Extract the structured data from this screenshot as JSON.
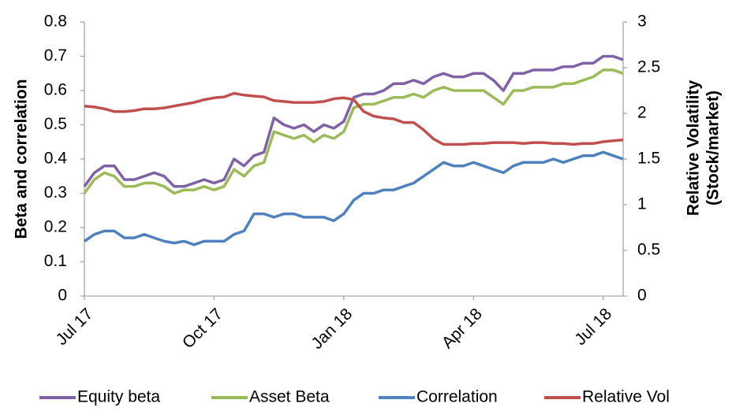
{
  "chart_data": {
    "type": "line",
    "categories": [
      "Jul 17",
      null,
      null,
      null,
      null,
      null,
      null,
      null,
      null,
      null,
      null,
      null,
      null,
      "Oct 17",
      null,
      null,
      null,
      null,
      null,
      null,
      null,
      null,
      null,
      null,
      null,
      null,
      "Jan 18",
      null,
      null,
      null,
      null,
      null,
      null,
      null,
      null,
      null,
      null,
      null,
      null,
      "Apr 18",
      null,
      null,
      null,
      null,
      null,
      null,
      null,
      null,
      null,
      null,
      null,
      null,
      "Jul 18",
      null,
      null
    ],
    "y_label": "Beta and correlation",
    "y2_label": [
      "Relative Volatility",
      "(Stock/market)"
    ],
    "ylim": [
      0,
      0.8
    ],
    "yticks": [
      0,
      0.1,
      0.2,
      0.3,
      0.4,
      0.5,
      0.6,
      0.7,
      0.8
    ],
    "y2lim": [
      0,
      3
    ],
    "y2ticks": [
      0,
      0.5,
      1,
      1.5,
      2,
      2.5,
      3
    ],
    "grid": false,
    "legend": "bottom",
    "series": [
      {
        "name": "Equity beta",
        "color": "#7f62a6",
        "values": [
          0.32,
          0.36,
          0.38,
          0.38,
          0.34,
          0.34,
          0.35,
          0.36,
          0.35,
          0.32,
          0.32,
          0.33,
          0.34,
          0.33,
          0.34,
          0.4,
          0.38,
          0.41,
          0.42,
          0.52,
          0.5,
          0.49,
          0.5,
          0.48,
          0.5,
          0.49,
          0.51,
          0.58,
          0.59,
          0.59,
          0.6,
          0.62,
          0.62,
          0.63,
          0.62,
          0.64,
          0.65,
          0.64,
          0.64,
          0.65,
          0.65,
          0.63,
          0.6,
          0.65,
          0.65,
          0.66,
          0.66,
          0.66,
          0.67,
          0.67,
          0.68,
          0.68,
          0.7,
          0.7,
          0.69
        ]
      },
      {
        "name": "Asset Beta",
        "color": "#9bbb59",
        "values": [
          0.3,
          0.34,
          0.36,
          0.35,
          0.32,
          0.32,
          0.33,
          0.33,
          0.32,
          0.3,
          0.31,
          0.31,
          0.32,
          0.31,
          0.32,
          0.37,
          0.35,
          0.38,
          0.39,
          0.48,
          0.47,
          0.46,
          0.47,
          0.45,
          0.47,
          0.46,
          0.48,
          0.55,
          0.56,
          0.56,
          0.57,
          0.58,
          0.58,
          0.59,
          0.58,
          0.6,
          0.61,
          0.6,
          0.6,
          0.6,
          0.6,
          0.58,
          0.56,
          0.6,
          0.6,
          0.61,
          0.61,
          0.61,
          0.62,
          0.62,
          0.63,
          0.64,
          0.66,
          0.66,
          0.65
        ]
      },
      {
        "name": "Correlation",
        "color": "#4f81bd",
        "values": [
          0.16,
          0.18,
          0.19,
          0.19,
          0.17,
          0.17,
          0.18,
          0.17,
          0.16,
          0.155,
          0.16,
          0.15,
          0.16,
          0.16,
          0.16,
          0.18,
          0.19,
          0.24,
          0.24,
          0.23,
          0.24,
          0.24,
          0.23,
          0.23,
          0.23,
          0.22,
          0.24,
          0.28,
          0.3,
          0.3,
          0.31,
          0.31,
          0.32,
          0.33,
          0.35,
          0.37,
          0.39,
          0.38,
          0.38,
          0.39,
          0.38,
          0.37,
          0.36,
          0.38,
          0.39,
          0.39,
          0.39,
          0.4,
          0.39,
          0.4,
          0.41,
          0.41,
          0.42,
          0.41,
          0.4
        ]
      },
      {
        "name": "Relative Vol",
        "color": "#c0504d",
        "axis": "y2",
        "values": [
          2.08,
          2.07,
          2.05,
          2.02,
          2.02,
          2.03,
          2.05,
          2.05,
          2.06,
          2.08,
          2.1,
          2.12,
          2.15,
          2.17,
          2.18,
          2.22,
          2.2,
          2.19,
          2.18,
          2.14,
          2.13,
          2.12,
          2.12,
          2.12,
          2.13,
          2.16,
          2.17,
          2.15,
          2.02,
          1.97,
          1.95,
          1.94,
          1.9,
          1.9,
          1.82,
          1.72,
          1.66,
          1.66,
          1.66,
          1.67,
          1.67,
          1.68,
          1.68,
          1.68,
          1.67,
          1.68,
          1.68,
          1.67,
          1.67,
          1.66,
          1.67,
          1.67,
          1.69,
          1.7,
          1.71
        ]
      }
    ]
  }
}
